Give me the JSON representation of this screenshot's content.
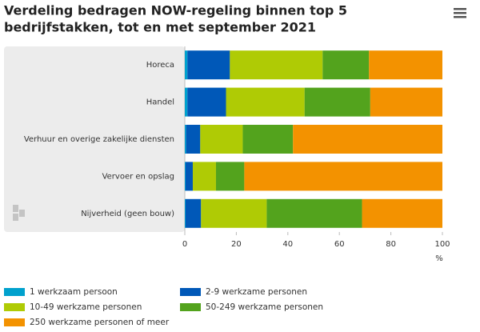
{
  "chart_data": {
    "type": "stacked-bar-horizontal",
    "title": [
      "Verdeling bedragen NOW-regeling binnen top 5",
      "bedrijfstakken, tot en met september 2021"
    ],
    "categories": [
      "Horeca",
      "Handel",
      "Verhuur en overige zakelijke diensten",
      "Vervoer en opslag",
      "Nijverheid (geen bouw)"
    ],
    "series": [
      {
        "name": "1 werkzaam persoon",
        "color": "#00a1cd",
        "values": [
          1,
          1,
          0.5,
          0.3,
          0.3
        ]
      },
      {
        "name": "2-9 werkzame personen",
        "color": "#0058b8",
        "values": [
          16.5,
          15,
          5.5,
          2.8,
          6
        ]
      },
      {
        "name": "10-49 werkzame personen",
        "color": "#afcb05",
        "values": [
          36,
          30.5,
          16.5,
          9,
          25.5
        ]
      },
      {
        "name": "50-249 werkzame personen",
        "color": "#53a31d",
        "values": [
          18,
          25.5,
          19.5,
          11,
          37
        ]
      },
      {
        "name": "250 werkzame personen of meer",
        "color": "#f39200",
        "values": [
          28.5,
          28,
          58,
          76.9,
          31.2
        ]
      }
    ],
    "xlabel": "%",
    "xlim": [
      0,
      100
    ],
    "xticks": [
      0,
      20,
      40,
      60,
      80,
      100
    ],
    "grid": false
  }
}
